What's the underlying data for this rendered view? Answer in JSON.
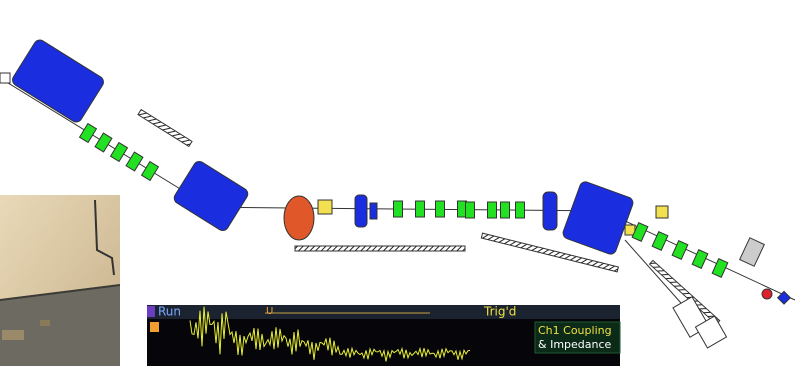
{
  "scope": {
    "status": "Run",
    "trigger": "Trig'd",
    "channel_label": [
      "Ch1 Coupling",
      "& Impedance"
    ]
  }
}
